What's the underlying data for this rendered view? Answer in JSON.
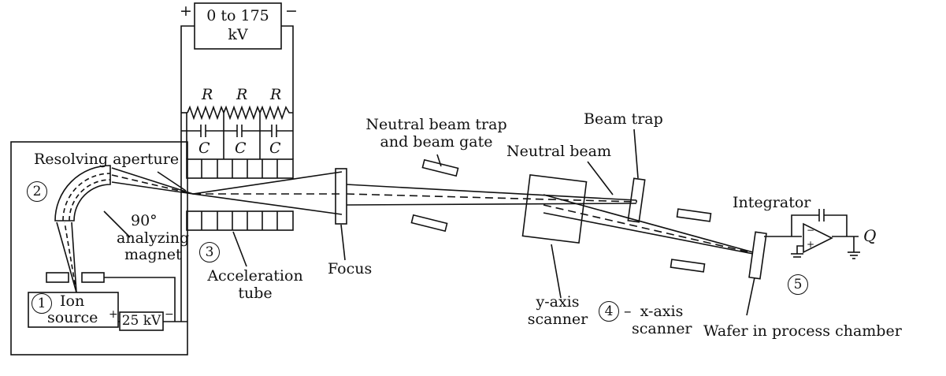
{
  "supply": {
    "voltage": "0 to 175",
    "unit": "kV",
    "plus": "+",
    "minus": "−"
  },
  "resistor_label": "R",
  "capacitor_label": "C",
  "source_supply": {
    "value": "25 kV",
    "plus": "+",
    "minus": "−"
  },
  "labels": {
    "resolving_aperture": "Resolving aperture",
    "magnet_angle": "90°",
    "magnet_line1": "analyzing",
    "magnet_line2": "magnet",
    "ion_source_line1": "Ion",
    "ion_source_line2": "source",
    "accel_line1": "Acceleration",
    "accel_line2": "tube",
    "focus": "Focus",
    "neutral_trap_line1": "Neutral beam trap",
    "neutral_trap_line2": "and beam gate",
    "neutral_beam": "Neutral beam",
    "beam_trap": "Beam trap",
    "y_scanner_line1": "y-axis",
    "y_scanner_line2": "scanner",
    "x_scanner_line1": "x-axis",
    "x_scanner_line2": "scanner",
    "dash": "–",
    "integrator": "Integrator",
    "charge": "Q",
    "wafer": "Wafer in process chamber"
  },
  "markers": [
    "1",
    "2",
    "3",
    "4",
    "5"
  ]
}
